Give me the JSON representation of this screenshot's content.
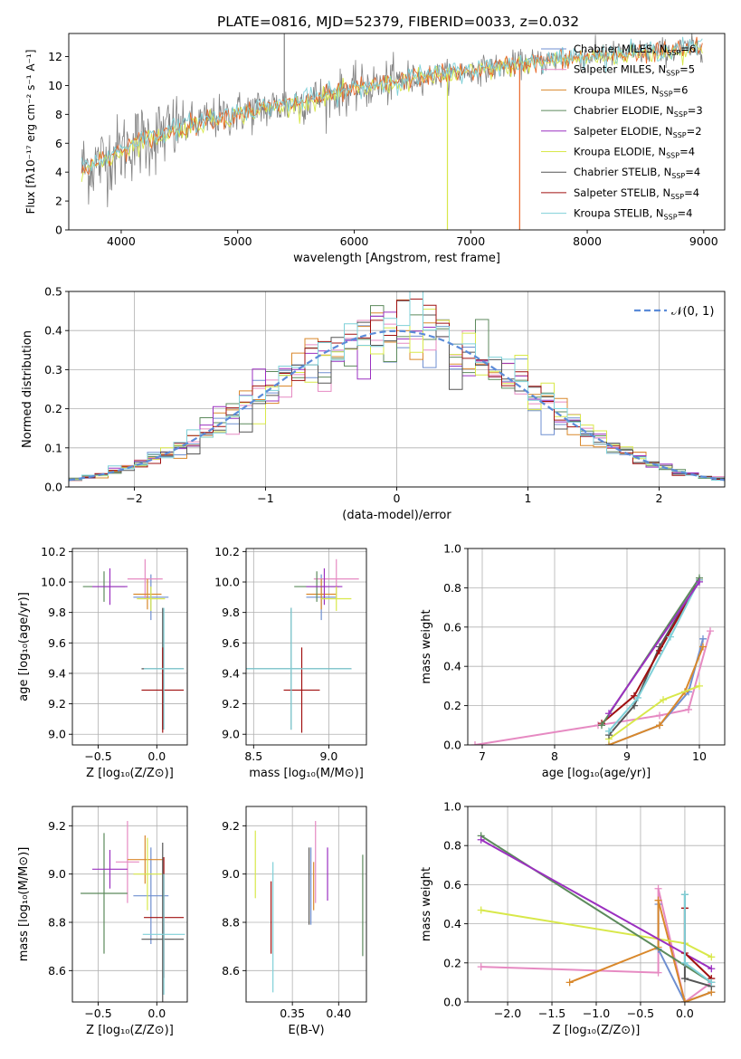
{
  "figure_title": "PLATE=0816, MJD=52379, FIBERID=0033, z=0.032",
  "colors": {
    "Chabrier MILES": "#6f8fd0",
    "Salpeter MILES": "#e68ac2",
    "Kroupa MILES": "#d9882b",
    "Chabrier ELODIE": "#5c8a5c",
    "Salpeter ELODIE": "#9b30c0",
    "Kroupa ELODIE": "#d8e84a",
    "Chabrier STELIB": "#555555",
    "Salpeter STELIB": "#a01010",
    "Kroupa STELIB": "#7fd0d8",
    "normal_curve": "#5b8bd8",
    "grid": "#b0b0b0",
    "orange_spectrum": "#e86a2c"
  },
  "chart_data": [
    {
      "id": "spectrum",
      "type": "line",
      "title": "PLATE=0816, MJD=52379, FIBERID=0033, z=0.032",
      "xlabel": "wavelength [Angstrom, rest frame]",
      "ylabel": "Flux [fλ10⁻¹⁷ erg cm⁻² s⁻¹ A⁻¹]",
      "xlim": [
        3550,
        9180
      ],
      "ylim": [
        0,
        13.6
      ],
      "xticks": [
        4000,
        5000,
        6000,
        7000,
        8000,
        9000
      ],
      "yticks": [
        0,
        2,
        4,
        6,
        8,
        10,
        12
      ],
      "grid": false,
      "legend_position": "right",
      "legend": [
        {
          "label": "Chabrier MILES, N",
          "sub": "SSP",
          "n": "=6"
        },
        {
          "label": "Salpeter MILES, N",
          "sub": "SSP",
          "n": "=5"
        },
        {
          "label": "Kroupa MILES, N",
          "sub": "SSP",
          "n": "=6"
        },
        {
          "label": "Chabrier ELODIE, N",
          "sub": "SSP",
          "n": "=3"
        },
        {
          "label": "Salpeter ELODIE, N",
          "sub": "SSP",
          "n": "=2"
        },
        {
          "label": "Kroupa ELODIE, N",
          "sub": "SSP",
          "n": "=4"
        },
        {
          "label": "Chabrier STELIB, N",
          "sub": "SSP",
          "n": "=4"
        },
        {
          "label": "Salpeter STELIB, N",
          "sub": "SSP",
          "n": "=4"
        },
        {
          "label": "Kroupa STELIB, N",
          "sub": "SSP",
          "n": "=4"
        }
      ],
      "continuum": [
        [
          3650,
          4.3
        ],
        [
          3800,
          4.6
        ],
        [
          3950,
          5.3
        ],
        [
          4100,
          6.0
        ],
        [
          4300,
          6.5
        ],
        [
          4600,
          7.3
        ],
        [
          5000,
          8.1
        ],
        [
          5500,
          8.8
        ],
        [
          6000,
          9.7
        ],
        [
          6500,
          10.5
        ],
        [
          7000,
          11.0
        ],
        [
          7500,
          11.6
        ],
        [
          8000,
          12.0
        ],
        [
          8500,
          12.3
        ],
        [
          9000,
          12.6
        ]
      ],
      "spikes": [
        [
          5400,
          13.6
        ],
        [
          6800,
          0.0
        ],
        [
          7420,
          0.0
        ]
      ]
    },
    {
      "id": "residuals",
      "type": "histogram",
      "xlabel": "(data-model)/error",
      "ylabel": "Normed distribution",
      "xlim": [
        -2.5,
        2.5
      ],
      "ylim": [
        0,
        0.5
      ],
      "xticks": [
        -2,
        -1,
        0,
        1,
        2
      ],
      "yticks": [
        0.0,
        0.1,
        0.2,
        0.3,
        0.4,
        0.5
      ],
      "grid": true,
      "legend_position": "top-right",
      "legend": [
        "𝒩(0, 1)"
      ],
      "bin_width": 0.1
    },
    {
      "id": "age_vs_Z",
      "type": "errorbar",
      "xlabel": "Z [log₁₀(Z/Z⊙)]",
      "ylabel": "age  [log₁₀(age/yr)]",
      "xlim": [
        -0.72,
        0.26
      ],
      "ylim": [
        8.93,
        10.22
      ],
      "xticks": [
        -0.5,
        0.0
      ],
      "yticks": [
        9.0,
        9.2,
        9.4,
        9.6,
        9.8,
        10.0,
        10.2
      ],
      "grid": true,
      "points": [
        {
          "s": "Chabrier MILES",
          "x": -0.05,
          "y": 9.9,
          "xe": 0.15,
          "ye": 0.15
        },
        {
          "s": "Salpeter MILES",
          "x": -0.1,
          "y": 10.02,
          "xe": 0.15,
          "ye": 0.13
        },
        {
          "s": "Kroupa MILES",
          "x": -0.08,
          "y": 9.92,
          "xe": 0.12,
          "ye": 0.1
        },
        {
          "s": "Chabrier ELODIE",
          "x": -0.45,
          "y": 9.97,
          "xe": 0.18,
          "ye": 0.1
        },
        {
          "s": "Salpeter ELODIE",
          "x": -0.4,
          "y": 9.97,
          "xe": 0.15,
          "ye": 0.12
        },
        {
          "s": "Kroupa ELODIE",
          "x": -0.05,
          "y": 9.89,
          "xe": 0.12,
          "ye": 0.08
        },
        {
          "s": "Chabrier STELIB",
          "x": 0.05,
          "y": 9.43,
          "xe": 0.18,
          "ye": 0.4
        },
        {
          "s": "Salpeter STELIB",
          "x": 0.05,
          "y": 9.29,
          "xe": 0.18,
          "ye": 0.28
        },
        {
          "s": "Kroupa STELIB",
          "x": 0.06,
          "y": 9.43,
          "xe": 0.17,
          "ye": 0.4
        }
      ]
    },
    {
      "id": "age_vs_mass",
      "type": "errorbar",
      "xlabel": "mass [log₁₀(M/M⊙)]",
      "ylabel": "",
      "xlim": [
        8.45,
        9.25
      ],
      "ylim": [
        8.93,
        10.22
      ],
      "xticks": [
        8.5,
        9.0
      ],
      "yticks": [
        9.0,
        9.2,
        9.4,
        9.6,
        9.8,
        10.0,
        10.2
      ],
      "grid": true,
      "points": [
        {
          "s": "Chabrier MILES",
          "x": 8.95,
          "y": 9.9,
          "xe": 0.1,
          "ye": 0.15
        },
        {
          "s": "Salpeter MILES",
          "x": 9.05,
          "y": 10.02,
          "xe": 0.15,
          "ye": 0.13
        },
        {
          "s": "Kroupa MILES",
          "x": 8.95,
          "y": 9.92,
          "xe": 0.1,
          "ye": 0.1
        },
        {
          "s": "Chabrier ELODIE",
          "x": 8.92,
          "y": 9.97,
          "xe": 0.15,
          "ye": 0.1
        },
        {
          "s": "Salpeter ELODIE",
          "x": 8.97,
          "y": 9.97,
          "xe": 0.12,
          "ye": 0.12
        },
        {
          "s": "Kroupa ELODIE",
          "x": 9.05,
          "y": 9.89,
          "xe": 0.1,
          "ye": 0.08
        },
        {
          "s": "Chabrier STELIB",
          "x": 8.75,
          "y": 9.43,
          "xe": 0.4,
          "ye": 0.4
        },
        {
          "s": "Salpeter STELIB",
          "x": 8.82,
          "y": 9.29,
          "xe": 0.12,
          "ye": 0.28
        },
        {
          "s": "Kroupa STELIB",
          "x": 8.75,
          "y": 9.43,
          "xe": 0.4,
          "ye": 0.4
        }
      ]
    },
    {
      "id": "mass_weight_vs_age",
      "type": "line",
      "xlabel": "age  [log₁₀(age/yr)]",
      "ylabel": "mass weight",
      "xlim": [
        6.8,
        10.35
      ],
      "ylim": [
        0,
        1.0
      ],
      "xticks": [
        7,
        8,
        9,
        10
      ],
      "yticks": [
        0.0,
        0.2,
        0.4,
        0.6,
        0.8,
        1.0
      ],
      "grid": true,
      "series": [
        {
          "s": "Salpeter MILES",
          "x": [
            6.9,
            8.6,
            9.45,
            9.85,
            10.15
          ],
          "y": [
            0.0,
            0.1,
            0.15,
            0.18,
            0.58
          ]
        },
        {
          "s": "Chabrier MILES",
          "x": [
            8.75,
            9.45,
            9.85,
            10.05
          ],
          "y": [
            0.0,
            0.1,
            0.27,
            0.54
          ]
        },
        {
          "s": "Kroupa MILES",
          "x": [
            8.75,
            9.45,
            9.8,
            10.05
          ],
          "y": [
            0.0,
            0.1,
            0.27,
            0.5
          ]
        },
        {
          "s": "Kroupa ELODIE",
          "x": [
            8.75,
            9.5,
            10.0
          ],
          "y": [
            0.03,
            0.23,
            0.3
          ]
        },
        {
          "s": "Chabrier STELIB",
          "x": [
            8.75,
            9.1,
            9.45,
            10.0
          ],
          "y": [
            0.05,
            0.2,
            0.5,
            0.84
          ]
        },
        {
          "s": "Salpeter STELIB",
          "x": [
            8.65,
            9.1,
            9.45,
            10.0
          ],
          "y": [
            0.11,
            0.25,
            0.48,
            0.84
          ]
        },
        {
          "s": "Kroupa STELIB",
          "x": [
            8.75,
            9.15,
            9.6,
            10.0
          ],
          "y": [
            0.07,
            0.24,
            0.55,
            0.84
          ]
        },
        {
          "s": "Chabrier ELODIE",
          "x": [
            8.65,
            10.0
          ],
          "y": [
            0.1,
            0.85
          ]
        },
        {
          "s": "Salpeter ELODIE",
          "x": [
            8.75,
            10.0
          ],
          "y": [
            0.16,
            0.83
          ]
        }
      ]
    },
    {
      "id": "mass_vs_Z",
      "type": "errorbar",
      "xlabel": "Z [log₁₀(Z/Z⊙)]",
      "ylabel": "mass [log₁₀(M/M⊙)]",
      "xlim": [
        -0.72,
        0.26
      ],
      "ylim": [
        8.47,
        9.28
      ],
      "xticks": [
        -0.5,
        0.0
      ],
      "yticks": [
        8.6,
        8.8,
        9.0,
        9.2
      ],
      "grid": true,
      "points": [
        {
          "s": "Chabrier MILES",
          "x": -0.05,
          "y": 8.91,
          "xe": 0.15,
          "ye": 0.2
        },
        {
          "s": "Salpeter MILES",
          "x": -0.25,
          "y": 9.05,
          "xe": 0.1,
          "ye": 0.17
        },
        {
          "s": "Kroupa MILES",
          "x": -0.1,
          "y": 9.06,
          "xe": 0.15,
          "ye": 0.1
        },
        {
          "s": "Chabrier ELODIE",
          "x": -0.45,
          "y": 8.92,
          "xe": 0.2,
          "ye": 0.25
        },
        {
          "s": "Salpeter ELODIE",
          "x": -0.4,
          "y": 9.02,
          "xe": 0.15,
          "ye": 0.08
        },
        {
          "s": "Kroupa ELODIE",
          "x": -0.08,
          "y": 9.0,
          "xe": 0.12,
          "ye": 0.15
        },
        {
          "s": "Chabrier STELIB",
          "x": 0.05,
          "y": 8.73,
          "xe": 0.18,
          "ye": 0.4
        },
        {
          "s": "Salpeter STELIB",
          "x": 0.06,
          "y": 8.82,
          "xe": 0.17,
          "ye": 0.25
        },
        {
          "s": "Kroupa STELIB",
          "x": 0.06,
          "y": 8.75,
          "xe": 0.18,
          "ye": 0.25
        }
      ]
    },
    {
      "id": "mass_vs_EBV",
      "type": "errorbar",
      "xlabel": "E(B-V)",
      "ylabel": "",
      "xlim": [
        0.3,
        0.43
      ],
      "ylim": [
        8.47,
        9.28
      ],
      "xticks": [
        0.35,
        0.4
      ],
      "yticks": [
        8.6,
        8.8,
        9.0,
        9.2
      ],
      "grid": true,
      "points": [
        {
          "s": "Kroupa ELODIE",
          "x": 0.31,
          "y": 9.04,
          "xe": 0.0,
          "ye": 0.14
        },
        {
          "s": "Salpeter STELIB",
          "x": 0.327,
          "y": 8.82,
          "xe": 0.0,
          "ye": 0.15
        },
        {
          "s": "Kroupa STELIB",
          "x": 0.329,
          "y": 8.78,
          "xe": 0.0,
          "ye": 0.27
        },
        {
          "s": "Chabrier MILES",
          "x": 0.37,
          "y": 8.95,
          "xe": 0.0,
          "ye": 0.16
        },
        {
          "s": "Salpeter MILES",
          "x": 0.375,
          "y": 9.05,
          "xe": 0.0,
          "ye": 0.17
        },
        {
          "s": "Kroupa MILES",
          "x": 0.373,
          "y": 8.95,
          "xe": 0.0,
          "ye": 0.1
        },
        {
          "s": "Salpeter ELODIE",
          "x": 0.388,
          "y": 9.0,
          "xe": 0.0,
          "ye": 0.11
        },
        {
          "s": "Chabrier ELODIE",
          "x": 0.426,
          "y": 8.87,
          "xe": 0.0,
          "ye": 0.21
        },
        {
          "s": "Chabrier STELIB",
          "x": 0.368,
          "y": 8.95,
          "xe": 0.0,
          "ye": 0.16
        }
      ]
    },
    {
      "id": "mass_weight_vs_Z",
      "type": "line",
      "xlabel": "Z [log₁₀(Z/Z⊙)]",
      "ylabel": "mass weight",
      "xlim": [
        -2.45,
        0.45
      ],
      "ylim": [
        0,
        1.0
      ],
      "xticks": [
        -2.0,
        -1.5,
        -1.0,
        -0.5,
        0.0
      ],
      "yticks": [
        0.0,
        0.2,
        0.4,
        0.6,
        0.8,
        1.0
      ],
      "grid": true,
      "series": [
        {
          "s": "Salpeter MILES",
          "x": [
            -2.3,
            -0.3,
            -0.3,
            0.0,
            0.3
          ],
          "y": [
            0.18,
            0.15,
            0.58,
            0.0,
            0.1
          ]
        },
        {
          "s": "Chabrier MILES",
          "x": [
            -0.3,
            -0.3,
            0.0,
            0.3
          ],
          "y": [
            0.5,
            0.27,
            0.0,
            0.05
          ]
        },
        {
          "s": "Kroupa MILES",
          "x": [
            -1.3,
            -0.3,
            -0.3,
            0.0,
            0.3
          ],
          "y": [
            0.1,
            0.28,
            0.52,
            0.0,
            0.05
          ]
        },
        {
          "s": "Kroupa ELODIE",
          "x": [
            -2.3,
            0.0,
            0.3
          ],
          "y": [
            0.47,
            0.3,
            0.23
          ]
        },
        {
          "s": "Chabrier ELODIE",
          "x": [
            -2.3,
            0.3
          ],
          "y": [
            0.85,
            0.1
          ]
        },
        {
          "s": "Salpeter ELODIE",
          "x": [
            -2.3,
            0.3
          ],
          "y": [
            0.83,
            0.17
          ]
        },
        {
          "s": "Chabrier STELIB",
          "x": [
            0.0,
            0.0,
            0.3
          ],
          "y": [
            0.55,
            0.12,
            0.08
          ]
        },
        {
          "s": "Salpeter STELIB",
          "x": [
            0.0,
            0.0,
            0.3
          ],
          "y": [
            0.48,
            0.25,
            0.12
          ]
        },
        {
          "s": "Kroupa STELIB",
          "x": [
            0.0,
            0.0,
            0.3
          ],
          "y": [
            0.55,
            0.2,
            0.1
          ]
        }
      ]
    }
  ]
}
